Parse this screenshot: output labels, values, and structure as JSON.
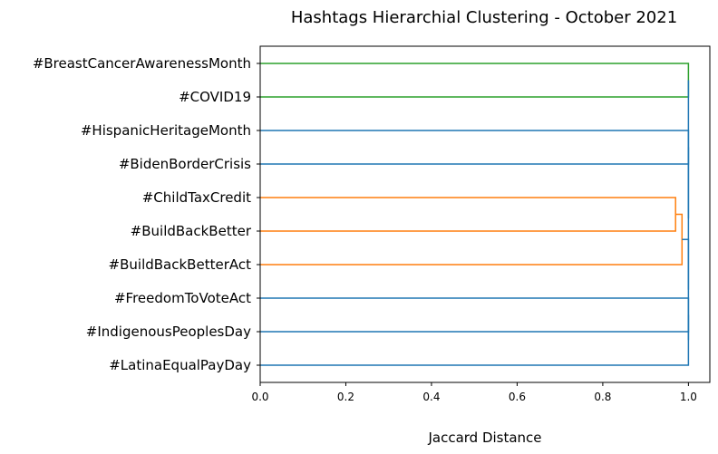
{
  "chart_data": {
    "type": "dendrogram",
    "orientation": "horizontal",
    "title": "Hashtags Hierarchial Clustering - October 2021",
    "xlabel": "Jaccard Distance",
    "ylabel": "",
    "xlim": [
      0,
      1.05
    ],
    "xticks": [
      "0.0",
      "0.2",
      "0.4",
      "0.6",
      "0.8",
      "1.0"
    ],
    "grid": false,
    "leaves": [
      "#BreastCancerAwarenessMonth",
      "#COVID19",
      "#HispanicHeritageMonth",
      "#BidenBorderCrisis",
      "#ChildTaxCredit",
      "#BuildBackBetter",
      "#BuildBackBetterAct",
      "#FreedomToVoteAct",
      "#IndigenousPeoplesDay",
      "#LatinaEqualPayDay"
    ],
    "colors": {
      "above_threshold": "#1f77b4",
      "cluster_a": "#2ca02c",
      "cluster_b": "#ff7f0e"
    },
    "merges": [
      {
        "left": "#ChildTaxCredit",
        "right": "#BuildBackBetter",
        "distance": 0.97,
        "color": "#ff7f0e"
      },
      {
        "left": "#ChildTaxCredit + #BuildBackBetter",
        "right": "#BuildBackBetterAct",
        "distance": 0.985,
        "color": "#ff7f0e"
      },
      {
        "left": "#BreastCancerAwarenessMonth",
        "right": "#COVID19",
        "distance": 1.0,
        "color": "#2ca02c"
      },
      {
        "left": "#HispanicHeritageMonth",
        "right": "#BidenBorderCrisis",
        "distance": 1.0,
        "color": "#1f77b4"
      },
      {
        "left": "#FreedomToVoteAct",
        "right": "#IndigenousPeoplesDay",
        "distance": 1.0,
        "color": "#1f77b4"
      },
      {
        "left": "#FreedomToVoteAct + #IndigenousPeoplesDay",
        "right": "#LatinaEqualPayDay",
        "distance": 1.0,
        "color": "#1f77b4"
      },
      {
        "left": "orange cluster",
        "right": "#FreedomToVoteAct + #IndigenousPeoplesDay + #LatinaEqualPayDay",
        "distance": 1.0,
        "color": "#1f77b4"
      },
      {
        "left": "#HispanicHeritageMonth + #BidenBorderCrisis",
        "right": "rest",
        "distance": 1.0,
        "color": "#1f77b4"
      },
      {
        "left": "#BreastCancerAwarenessMonth + #COVID19",
        "right": "rest",
        "distance": 1.0,
        "color": "#1f77b4"
      }
    ]
  }
}
